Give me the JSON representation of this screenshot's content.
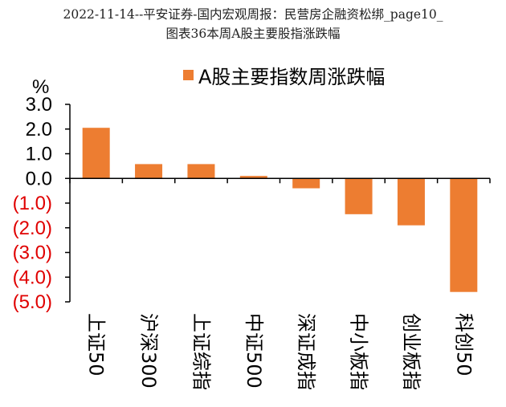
{
  "header": {
    "title": "2022-11-14--平安证券-国内宏观周报：民营房企融资松绑_page10_\n图表36本周A股主要股指涨跌幅"
  },
  "chart_data": {
    "type": "bar",
    "categories": [
      "上证50",
      "沪深300",
      "上证综指",
      "中证500",
      "深证成指",
      "中小板指",
      "创业板指",
      "科创50"
    ],
    "series": [
      {
        "name": "A股主要指数周涨跌幅",
        "values": [
          2.05,
          0.58,
          0.58,
          0.1,
          -0.4,
          -1.45,
          -1.9,
          -4.6
        ]
      }
    ],
    "ylabel": "%",
    "ylim": [
      -5.0,
      3.0
    ],
    "yticks": [
      3.0,
      2.0,
      1.0,
      0.0,
      -1.0,
      -2.0,
      -3.0,
      -4.0,
      -5.0
    ],
    "ytick_labels": [
      "3.0",
      "2.0",
      "1.0",
      "0.0",
      "(1.0)",
      "(2.0)",
      "(3.0)",
      "(4.0)",
      "(5.0)"
    ],
    "grid": false,
    "legend": "top",
    "colors": {
      "bar": "#ED7D31",
      "negative_tick": "#E00000",
      "positive_tick": "#000000",
      "axis": "#000000"
    }
  }
}
